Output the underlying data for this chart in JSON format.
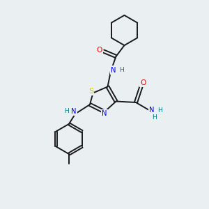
{
  "background_color": "#eaeff2",
  "bond_color": "#1a1a1a",
  "atom_colors": {
    "N": "#0000ee",
    "O": "#ee0000",
    "S": "#cccc00",
    "C": "#1a1a1a",
    "H": "#008080"
  },
  "figsize": [
    3.0,
    3.0
  ],
  "dpi": 100,
  "lw": 1.4,
  "fs": 7.2
}
